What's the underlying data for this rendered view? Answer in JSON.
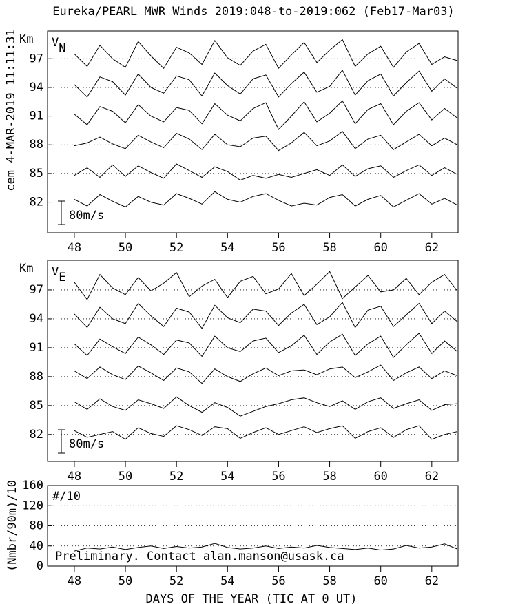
{
  "title": "Eureka/PEARL MWR Winds 2019:048-to-2019:062 (Feb17-Mar03)",
  "side_note": "cem 4-MAR-2019 11:11:31",
  "chart_data": [
    {
      "type": "line",
      "ylabel": "Km",
      "label": "V",
      "label_sub": "N",
      "scale_label": "80m/s",
      "color": "#000000",
      "grid": true,
      "xlim": [
        46.95,
        63.03
      ],
      "xticks": [
        48,
        50,
        52,
        54,
        56,
        58,
        60,
        62
      ],
      "ylim": [
        78.8,
        99.9
      ],
      "yticks": [
        82,
        85,
        88,
        91,
        94,
        97
      ],
      "x": [
        48,
        48.5,
        49,
        49.5,
        50,
        50.5,
        51,
        51.5,
        52,
        52.5,
        53,
        53.5,
        54,
        54.5,
        55,
        55.5,
        56,
        56.5,
        57,
        57.5,
        58,
        58.5,
        59,
        59.5,
        60,
        60.5,
        61,
        61.5,
        62,
        62.5,
        63
      ],
      "series": [
        {
          "values": [
            97.5,
            96.2,
            98.4,
            97.0,
            96.1,
            98.8,
            97.3,
            96.0,
            98.2,
            97.6,
            96.4,
            98.9,
            97.1,
            96.3,
            97.8,
            98.5,
            96.0,
            97.4,
            98.7,
            96.6,
            97.9,
            99.0,
            96.2,
            97.5,
            98.3,
            96.1,
            97.7,
            98.6,
            96.4,
            97.2,
            96.8
          ]
        },
        {
          "values": [
            94.3,
            93.0,
            95.1,
            94.6,
            93.2,
            95.4,
            94.0,
            93.4,
            95.2,
            94.8,
            93.1,
            95.5,
            94.2,
            93.3,
            94.9,
            95.3,
            93.0,
            94.4,
            95.6,
            93.5,
            94.1,
            95.8,
            93.2,
            94.7,
            95.4,
            93.1,
            94.5,
            95.7,
            93.6,
            94.9,
            93.9
          ]
        },
        {
          "values": [
            91.2,
            90.1,
            92.0,
            91.5,
            90.3,
            92.2,
            91.0,
            90.4,
            91.9,
            91.6,
            90.2,
            92.3,
            91.1,
            90.5,
            91.8,
            92.4,
            89.6,
            91.0,
            92.5,
            90.4,
            91.3,
            92.6,
            90.2,
            91.7,
            92.3,
            90.1,
            91.5,
            92.4,
            90.6,
            91.8,
            90.8
          ]
        },
        {
          "values": [
            87.9,
            88.2,
            88.8,
            88.1,
            87.6,
            89.0,
            88.3,
            87.7,
            89.2,
            88.6,
            87.5,
            89.1,
            88.0,
            87.8,
            88.7,
            88.9,
            87.4,
            88.2,
            89.3,
            87.9,
            88.4,
            89.4,
            87.6,
            88.6,
            89.0,
            87.5,
            88.3,
            89.1,
            87.9,
            88.7,
            88.0
          ]
        },
        {
          "values": [
            84.8,
            85.6,
            84.6,
            85.9,
            84.7,
            85.8,
            85.1,
            84.5,
            86.0,
            85.3,
            84.6,
            85.7,
            85.2,
            84.3,
            84.8,
            84.5,
            84.9,
            84.6,
            85.0,
            85.4,
            84.8,
            85.9,
            84.7,
            85.5,
            85.8,
            84.6,
            85.3,
            85.9,
            84.8,
            85.6,
            84.9
          ]
        },
        {
          "values": [
            82.3,
            81.6,
            82.8,
            82.1,
            81.5,
            82.6,
            82.0,
            81.7,
            82.9,
            82.4,
            81.8,
            83.1,
            82.3,
            82.0,
            82.6,
            82.9,
            82.2,
            81.6,
            81.9,
            81.7,
            82.5,
            82.8,
            81.6,
            82.3,
            82.7,
            81.5,
            82.2,
            82.9,
            81.8,
            82.4,
            81.7
          ]
        }
      ]
    },
    {
      "type": "line",
      "ylabel": "Km",
      "label": "V",
      "label_sub": "E",
      "scale_label": "80m/s",
      "color": "#000000",
      "grid": true,
      "xlim": [
        46.95,
        63.03
      ],
      "xticks": [
        48,
        50,
        52,
        54,
        56,
        58,
        60,
        62
      ],
      "ylim": [
        79.2,
        100.07
      ],
      "yticks": [
        82,
        85,
        88,
        91,
        94,
        97
      ],
      "x": [
        48,
        48.5,
        49,
        49.5,
        50,
        50.5,
        51,
        51.5,
        52,
        52.5,
        53,
        53.5,
        54,
        54.5,
        55,
        55.5,
        56,
        56.5,
        57,
        57.5,
        58,
        58.5,
        59,
        59.5,
        60,
        60.5,
        61,
        61.5,
        62,
        62.5,
        63
      ],
      "series": [
        {
          "values": [
            97.8,
            96.0,
            98.6,
            97.2,
            96.5,
            98.3,
            96.9,
            97.7,
            98.8,
            96.3,
            97.4,
            98.1,
            96.2,
            97.9,
            98.4,
            96.6,
            97.1,
            98.7,
            96.4,
            97.6,
            98.9,
            96.1,
            97.3,
            98.5,
            96.8,
            97.0,
            98.2,
            96.5,
            97.8,
            98.6,
            96.9
          ]
        },
        {
          "values": [
            94.5,
            93.1,
            95.2,
            94.0,
            93.5,
            95.6,
            94.3,
            93.2,
            95.1,
            94.7,
            93.0,
            95.4,
            94.1,
            93.6,
            95.0,
            94.8,
            93.3,
            94.6,
            95.5,
            93.4,
            94.2,
            95.7,
            93.1,
            94.9,
            95.3,
            93.2,
            94.4,
            95.6,
            93.5,
            94.8,
            93.7
          ]
        },
        {
          "values": [
            91.4,
            90.2,
            91.9,
            91.1,
            90.4,
            92.1,
            91.3,
            90.3,
            91.8,
            91.5,
            90.1,
            92.2,
            91.0,
            90.6,
            91.7,
            92.0,
            90.5,
            91.2,
            92.3,
            90.3,
            91.6,
            92.4,
            90.2,
            91.4,
            92.2,
            90.0,
            91.3,
            92.5,
            90.4,
            91.7,
            90.6
          ]
        },
        {
          "values": [
            88.6,
            87.8,
            89.0,
            88.2,
            87.7,
            89.1,
            88.4,
            87.6,
            88.9,
            88.5,
            87.3,
            88.8,
            88.0,
            87.5,
            88.3,
            88.9,
            88.1,
            88.6,
            88.7,
            88.2,
            88.8,
            89.0,
            87.9,
            88.5,
            89.2,
            87.6,
            88.4,
            89.0,
            87.8,
            88.6,
            88.1
          ]
        },
        {
          "values": [
            85.4,
            84.6,
            85.7,
            84.9,
            84.5,
            85.6,
            85.2,
            84.7,
            85.9,
            85.0,
            84.3,
            85.3,
            84.8,
            83.9,
            84.4,
            84.9,
            85.2,
            85.6,
            85.8,
            85.3,
            84.9,
            85.5,
            84.6,
            85.4,
            85.8,
            84.7,
            85.2,
            85.6,
            84.5,
            85.1,
            85.2
          ]
        },
        {
          "values": [
            82.4,
            81.7,
            82.0,
            82.3,
            81.5,
            82.7,
            82.1,
            81.8,
            82.9,
            82.5,
            81.9,
            82.8,
            82.6,
            81.6,
            82.2,
            82.7,
            82.0,
            82.4,
            82.8,
            82.2,
            82.6,
            82.9,
            81.6,
            82.3,
            82.7,
            81.7,
            82.5,
            82.9,
            81.5,
            82.0,
            82.3
          ]
        }
      ]
    },
    {
      "type": "line",
      "ylabel": "(Nmbr/90m)/10",
      "label": "#/10",
      "note": "Preliminary. Contact alan.manson@usask.ca",
      "xlabel": "DAYS OF THE YEAR (TIC AT 0 UT)",
      "color": "#000000",
      "grid": true,
      "xlim": [
        46.95,
        63.03
      ],
      "xticks": [
        48,
        50,
        52,
        54,
        56,
        58,
        60,
        62
      ],
      "ylim": [
        0,
        160
      ],
      "yticks": [
        0,
        40,
        80,
        120,
        160
      ],
      "x": [
        48,
        48.5,
        49,
        49.5,
        50,
        50.5,
        51,
        51.5,
        52,
        52.5,
        53,
        53.5,
        54,
        54.5,
        55,
        55.5,
        56,
        56.5,
        57,
        57.5,
        58,
        58.5,
        59,
        59.5,
        60,
        60.5,
        61,
        61.5,
        62,
        62.5,
        63
      ],
      "series": [
        {
          "values": [
            30,
            36,
            34,
            38,
            33,
            37,
            40,
            35,
            39,
            36,
            38,
            45,
            37,
            34,
            36,
            40,
            35,
            38,
            36,
            41,
            37,
            35,
            33,
            36,
            32,
            34,
            41,
            36,
            38,
            44,
            34
          ]
        }
      ]
    }
  ]
}
